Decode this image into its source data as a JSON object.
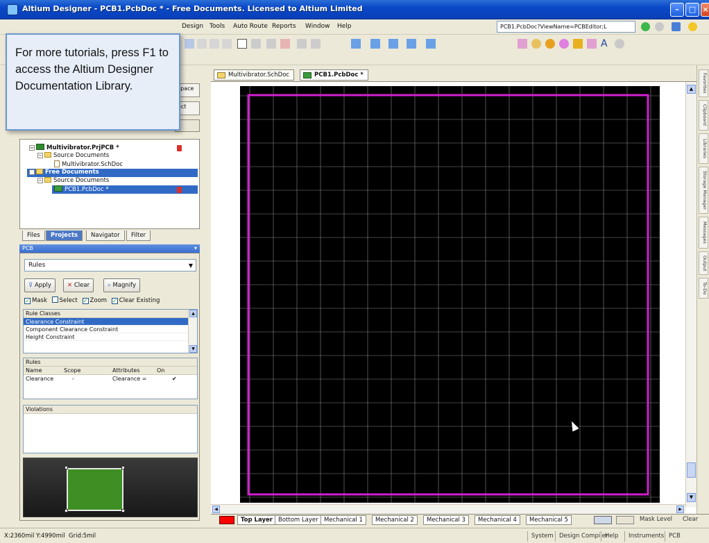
{
  "window": {
    "title": "Altium Designer - PCB1.PcbDoc * - Free Documents. Licensed to Altium Limited"
  },
  "menu": {
    "items": [
      "Design",
      "Tools",
      "Auto Route",
      "Reports",
      "Window",
      "Help"
    ],
    "view_name": "PCB1.PcbDoc?ViewName=PCBEditor;L"
  },
  "tooltip": {
    "text": "For more tutorials, press F1 to access the Altium Designer Documentation Library."
  },
  "panel_peek": {
    "workspace_label": "space",
    "project_label": "ect"
  },
  "project_tree": {
    "rows": [
      {
        "label": "Multivibrator.PrjPCB *",
        "kind": "project"
      },
      {
        "label": "Source Documents",
        "kind": "folder"
      },
      {
        "label": "Multivibrator.SchDoc",
        "kind": "doc"
      },
      {
        "label": "Free Documents",
        "kind": "folder"
      },
      {
        "label": "Source Documents",
        "kind": "folder"
      },
      {
        "label": "PCB1.PcbDoc *",
        "kind": "pcb"
      }
    ]
  },
  "panel_tabs": [
    "Files",
    "Projects",
    "Navigator",
    "Filter"
  ],
  "pcb_panel": {
    "header": "PCB",
    "mode_select": "Rules",
    "buttons": {
      "apply": "Apply",
      "clear": "Clear",
      "magnify": "Magnify"
    },
    "checks": [
      {
        "label": "Mask",
        "checked": true
      },
      {
        "label": "Select",
        "checked": false
      },
      {
        "label": "Zoom",
        "checked": true
      },
      {
        "label": "Clear Existing",
        "checked": true
      }
    ],
    "rule_classes": {
      "header": "Rule Classes",
      "items": [
        "Clearance Constraint",
        "Component Clearance Constraint",
        "Height Constraint"
      ]
    },
    "rules": {
      "header": "Rules",
      "columns": [
        "Name",
        "Scope",
        "Attributes",
        "On"
      ],
      "rows": [
        {
          "name": "Clearance",
          "scope": "-",
          "attributes": "Clearance =",
          "on": "✔"
        }
      ]
    },
    "violations": {
      "header": "Violations"
    }
  },
  "doc_tabs": [
    "Multivibrator.SchDoc",
    "PCB1.PcbDoc *"
  ],
  "layers": {
    "tabs": [
      "Top Layer",
      "Bottom Layer",
      "Mechanical 1",
      "Mechanical 2",
      "Mechanical 3",
      "Mechanical 4",
      "Mechanical 5"
    ],
    "right_labels": {
      "mask_level": "Mask Level",
      "clear": "Clear"
    },
    "top_layer_color": "#ff0000"
  },
  "right_strip_tabs": [
    "Favorites",
    "Clipboard",
    "Libraries",
    "Storage Manager",
    "Messages",
    "Output",
    "To-Do"
  ],
  "status": {
    "coords": "X:2360mil Y:4990mil",
    "grid": "Grid:5mil",
    "buttons": [
      "System",
      "Design Compiler",
      "Help",
      "Instruments",
      "PCB"
    ]
  },
  "colors": {
    "board_outline": "#d11fd1",
    "grid_line": "#8a8a8a",
    "canvas_bg": "#000000",
    "selection": "#316ac5"
  }
}
